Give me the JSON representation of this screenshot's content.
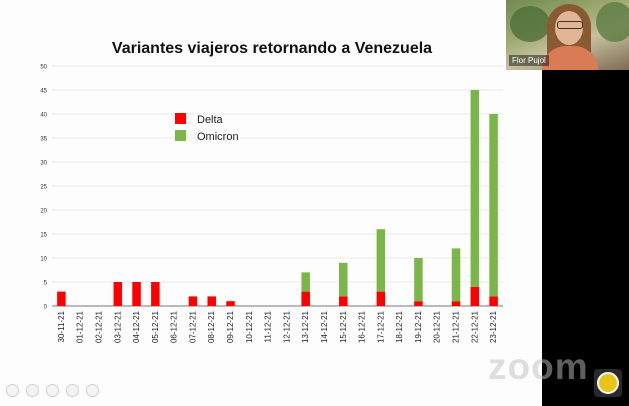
{
  "chart_data": {
    "type": "bar",
    "stacked": true,
    "title": "Variantes viajeros retornando a Venezuela",
    "categories": [
      "30-11-21",
      "01-12-21",
      "02-12-21",
      "03-12-21",
      "04-12-21",
      "05-12-21",
      "06-12-21",
      "07-12-21",
      "08-12-21",
      "09-12-21",
      "10-12-21",
      "11-12-21",
      "12-12-21",
      "13-12-21",
      "14-12-21",
      "15-12-21",
      "16-12-21",
      "17-12-21",
      "18-12-21",
      "19-12-21",
      "20-12-21",
      "21-12-21",
      "22-12-21",
      "23-12-21"
    ],
    "series": [
      {
        "name": "Delta",
        "color": "#ff0000",
        "values": [
          3,
          0,
          0,
          5,
          5,
          5,
          0,
          2,
          2,
          1,
          0,
          0,
          0,
          3,
          0,
          2,
          0,
          3,
          0,
          1,
          0,
          1,
          4,
          2
        ]
      },
      {
        "name": "Omicron",
        "color": "#7ab648",
        "values": [
          0,
          0,
          0,
          0,
          0,
          0,
          0,
          0,
          0,
          0,
          0,
          0,
          0,
          4,
          0,
          7,
          0,
          13,
          0,
          9,
          0,
          11,
          41,
          38
        ]
      }
    ],
    "ylim": [
      0,
      50
    ],
    "yticks": [
      0,
      5,
      10,
      15,
      20,
      25,
      30,
      35,
      40,
      45,
      50
    ],
    "grid": true,
    "legend": "top-left"
  },
  "overlay": {
    "participant_name": "Flor Pujol",
    "watermark": "zoom"
  }
}
